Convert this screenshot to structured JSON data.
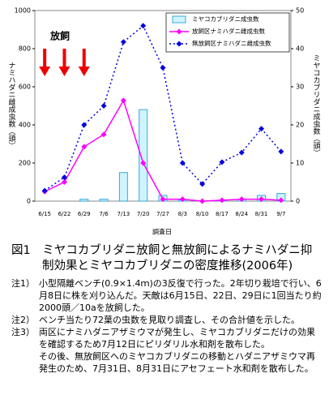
{
  "chart_data": {
    "type": "bar-line",
    "annotation": "放飼",
    "x_label": "調査日",
    "y_label": "ナミハダニ雌成虫数（頭）",
    "y2_label": "ミヤコカブリダニ成虫数（頭）",
    "categories": [
      "6/15",
      "6/22",
      "6/29",
      "7/6",
      "7/13",
      "7/20",
      "7/27",
      "8/3",
      "8/10",
      "8/17",
      "8/24",
      "8/31",
      "9/7"
    ],
    "release_dates": [
      "6/15",
      "6/22",
      "6/29"
    ],
    "ylim": [
      0,
      1000
    ],
    "yticks": [
      0,
      200,
      400,
      600,
      800,
      1000
    ],
    "y2lim": [
      0,
      50
    ],
    "y2ticks": [
      0,
      10,
      20,
      30,
      40,
      50
    ],
    "legend": "top-right",
    "series": [
      {
        "name": "ミヤコカブリダニ成虫数",
        "type": "bar",
        "axis": "y2",
        "color": "#33aadd",
        "values": [
          0,
          0,
          0.5,
          0.5,
          7.5,
          24,
          1.5,
          0.3,
          0,
          0.3,
          0.5,
          1.5,
          2
        ]
      },
      {
        "name": "放飼区ナミハダニ雌成虫数",
        "type": "line",
        "color": "#ff00ff",
        "dash": false,
        "values": [
          50,
          100,
          285,
          350,
          528,
          200,
          10,
          10,
          0,
          5,
          10,
          10,
          5
        ]
      },
      {
        "name": "無放飼区ナミハダニ雌成虫数",
        "type": "line",
        "color": "#0000dd",
        "dash": true,
        "values": [
          55,
          125,
          400,
          500,
          835,
          920,
          700,
          200,
          90,
          205,
          255,
          380,
          260
        ]
      }
    ]
  },
  "caption": {
    "title": "図1　ミヤコカブリダニ放飼と無放飼によるナミハダニ抑制効果とミヤコカブリダニの密度推移(2006年)",
    "notes": [
      [
        "注1）",
        "小型隔離ベンチ(0.9×1.4ｍ)の3反復で行った。2年切り栽培で行い、6月8日に株を刈り込んだ。天敵は6月15日、22日、29日に1回当たり約2000頭／10aを放飼した。"
      ],
      [
        "注2）",
        "ベンチ当たり72葉の虫数を見取り調査し、その合計値を示した。"
      ],
      [
        "注3）",
        "両区にナミハダニアザミウマが発生し、ミヤコカブリダニだけの効果を確認するため7月12日にピリダリル水和剤を散布した。",
        "その後、無放飼区へのミヤコカブリダニの移動とハダニアザミウマ再発生のため、7月31日、8月31日にアセフェート水和剤を散布した。"
      ]
    ]
  }
}
